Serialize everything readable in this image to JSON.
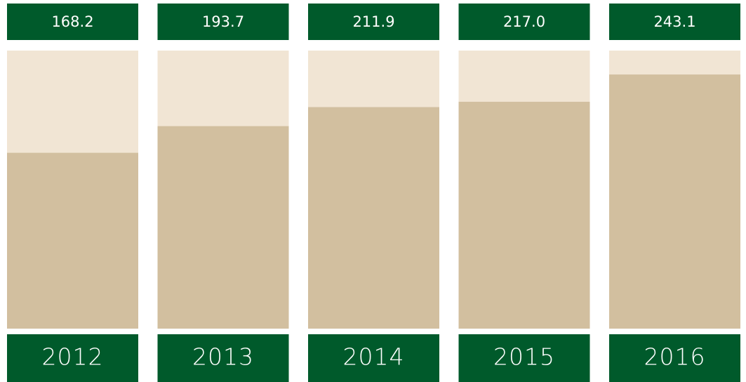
{
  "chart_data": {
    "type": "bar",
    "categories": [
      "2012",
      "2013",
      "2014",
      "2015",
      "2016"
    ],
    "values": [
      168.2,
      193.7,
      211.9,
      217.0,
      243.1
    ],
    "value_labels": [
      "168.2",
      "193.7",
      "211.9",
      "217.0",
      "243.1"
    ],
    "color": "#d2bf9f",
    "background_color": "#f1e5d4",
    "label_color": "#005a2b",
    "ylim": [
      0,
      266
    ]
  }
}
